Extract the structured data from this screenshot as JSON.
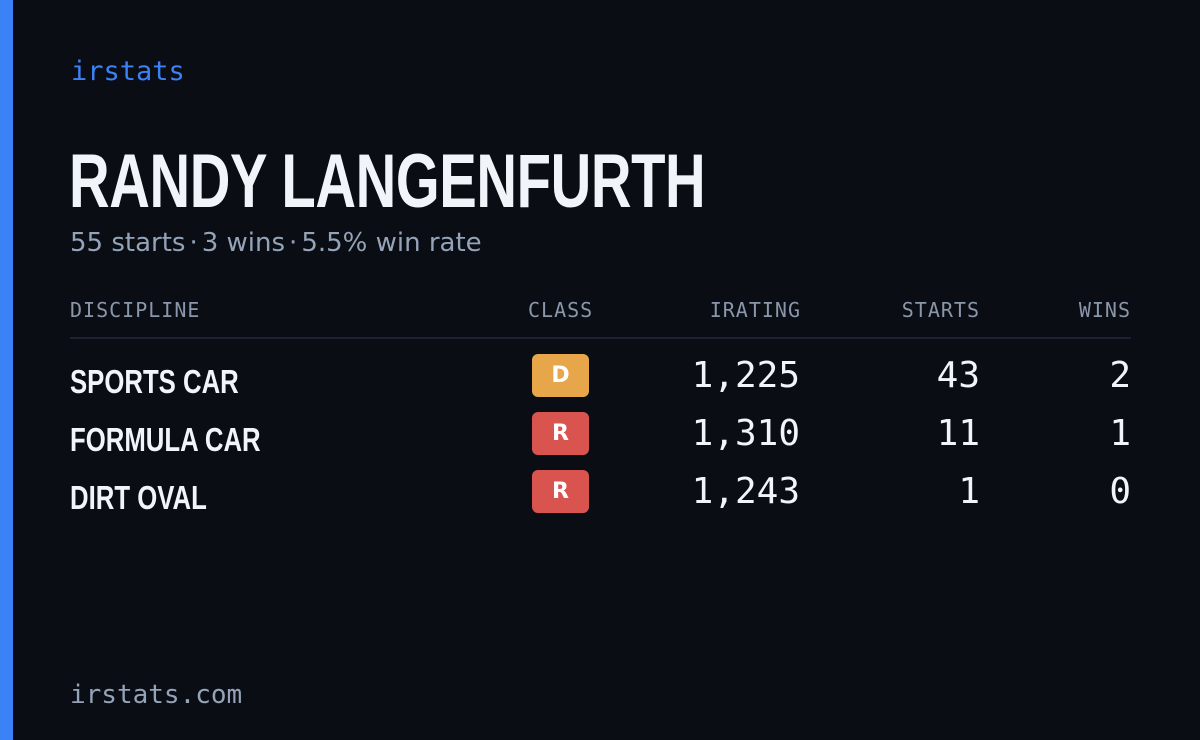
{
  "brand": "irstats",
  "player": {
    "name": "RANDY LANGENFURTH"
  },
  "summary": {
    "starts": "55 starts",
    "wins": "3 wins",
    "win_rate": "5.5% win rate",
    "separator": "·"
  },
  "table": {
    "headers": {
      "discipline": "DISCIPLINE",
      "class": "CLASS",
      "irating": "IRATING",
      "starts": "STARTS",
      "wins": "WINS"
    },
    "rows": [
      {
        "discipline": "SPORTS CAR",
        "class": "D",
        "class_color": "#e8a64a",
        "irating": "1,225",
        "starts": "43",
        "wins": "2"
      },
      {
        "discipline": "FORMULA CAR",
        "class": "R",
        "class_color": "#d9534f",
        "irating": "1,310",
        "starts": "11",
        "wins": "1"
      },
      {
        "discipline": "DIRT OVAL",
        "class": "R",
        "class_color": "#d9534f",
        "irating": "1,243",
        "starts": "1",
        "wins": "0"
      }
    ]
  },
  "footer": {
    "url": "irstats.com"
  },
  "colors": {
    "accent": "#3b82f6",
    "background": "#0a0d14"
  }
}
